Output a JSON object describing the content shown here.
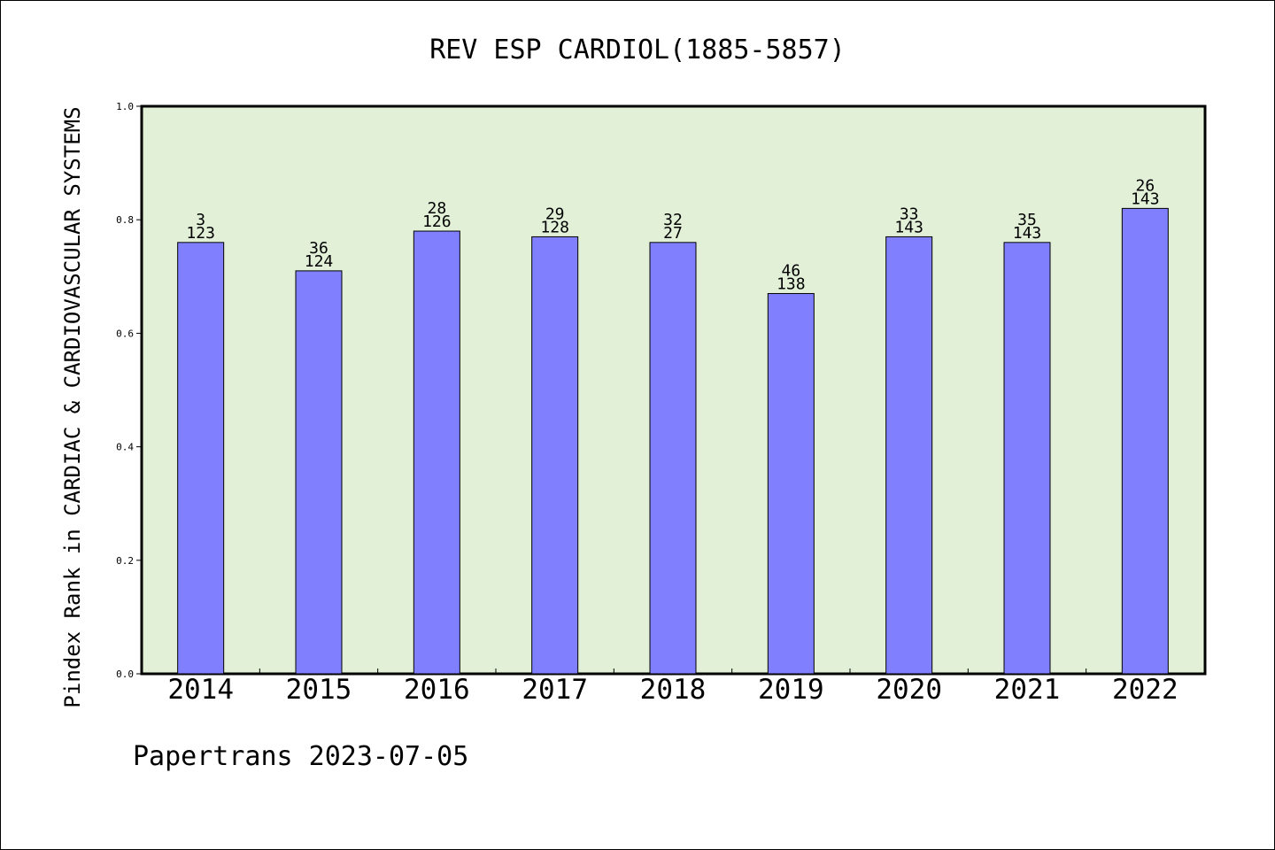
{
  "chart_data": {
    "type": "bar",
    "title": "REV ESP CARDIOL(1885-5857)",
    "ylabel": "Pindex Rank in CARDIAC & CARDIOVASCULAR SYSTEMS",
    "xlabel": "",
    "categories": [
      "2014",
      "2015",
      "2016",
      "2017",
      "2018",
      "2019",
      "2020",
      "2021",
      "2022"
    ],
    "values": [
      0.76,
      0.71,
      0.78,
      0.77,
      0.76,
      0.67,
      0.77,
      0.76,
      0.82
    ],
    "rank_labels": [
      "3",
      "36",
      "28",
      "29",
      "32",
      "46",
      "33",
      "35",
      "26"
    ],
    "total_labels": [
      "123",
      "124",
      "126",
      "128",
      "27",
      "138",
      "143",
      "143",
      "143"
    ],
    "ylim": [
      0,
      1.0
    ],
    "yticks": [
      "0.0",
      "0.2",
      "0.4",
      "0.6",
      "0.8",
      "1.0"
    ],
    "grid": false,
    "legend": "none",
    "footer": "Papertrans 2023-07-05",
    "colors": {
      "plot_background": "#e2f0d7",
      "bar_fill": "#8080ff",
      "bar_stroke": "#000000"
    }
  }
}
